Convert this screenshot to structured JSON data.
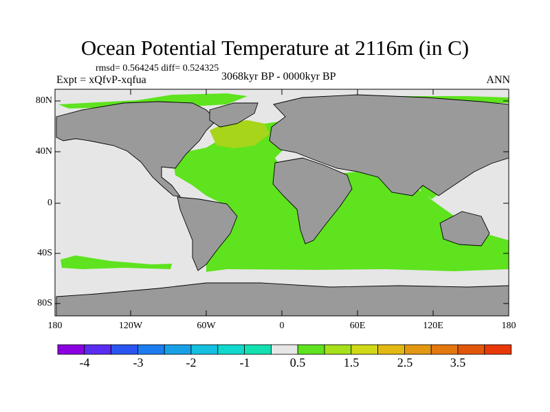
{
  "title": "Ocean Potential Temperature at 2116m (in C)",
  "stats": "rmsd= 0.564245 diff= 0.524325",
  "experiment": "Expt = xQfvP-xqfua",
  "period": "3068kyr BP - 0000kyr BP",
  "season": "ANN",
  "lat_ticks": [
    "80N",
    "40N",
    "0",
    "40S",
    "80S"
  ],
  "lon_ticks": [
    "180",
    "120W",
    "60W",
    "0",
    "60E",
    "120E",
    "180"
  ],
  "colorbar": {
    "colors": [
      "#8b00e0",
      "#5a2cf0",
      "#2a55f0",
      "#1c7cf0",
      "#18a0e6",
      "#14bfe0",
      "#10d8cc",
      "#12e0b0",
      "#e6e6e6",
      "#5ee31e",
      "#a6e01a",
      "#d0d817",
      "#e2b812",
      "#e29810",
      "#e2780e",
      "#e2560c",
      "#e8380a"
    ],
    "labels": [
      "-4",
      "-3",
      "-2",
      "-1",
      "0.5",
      "1.5",
      "2.5",
      "3.5"
    ]
  },
  "map_colors": {
    "land": "#9a9a9a",
    "near_zero": "#e6e6e6",
    "warm_anomaly": "#5ee31e",
    "strong_anomaly": "#a6d51a"
  }
}
